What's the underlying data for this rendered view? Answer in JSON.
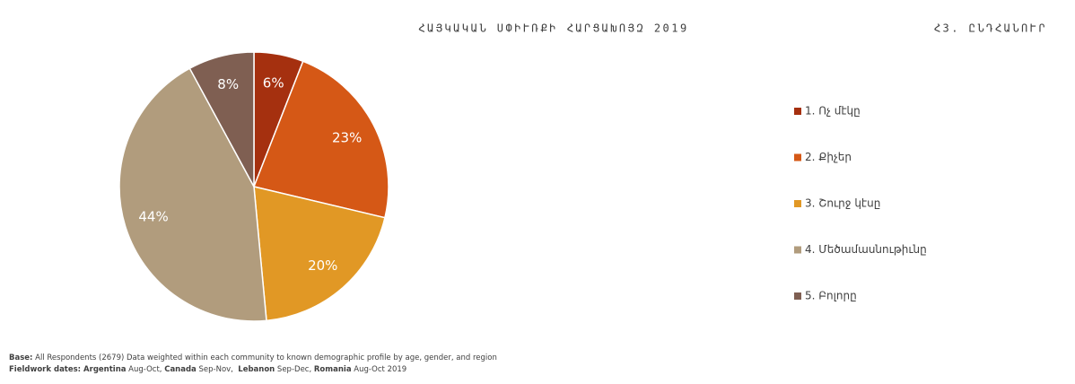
{
  "chart_data": {
    "type": "pie",
    "title": "ՀԱՅԿԱԿԱՆ ՍՓԻՒՌՔԻ ՀԱՐՑԱԽՈՅԶ 2019",
    "subtitle": "Հ3. ԸՆԴՀԱՆՈՒՐ",
    "categories": [
      "1. Ոչ մէկը",
      "2. Քիչեր",
      "3. Շուրջ կէսը",
      "4. Մեծամասնութիւնը",
      "5. Բոլորը"
    ],
    "values": [
      6,
      23,
      20,
      44,
      8
    ],
    "value_labels": [
      "6%",
      "23%",
      "20%",
      "44%",
      "8%"
    ],
    "colors": [
      "#a5300f",
      "#d55816",
      "#e19825",
      "#b19c7d",
      "#7f5f52"
    ],
    "legend": "right",
    "footnotes": [
      [
        {
          "text": "Base:",
          "bold": true
        },
        {
          "text": " All Respondents (2679) Data weighted within each community to known demographic profile by age, gender, and region"
        }
      ],
      [
        {
          "text": "Fieldwork dates: Argentina",
          "bold": true
        },
        {
          "text": " Aug-Oct, "
        },
        {
          "text": "Canada",
          "bold": true
        },
        {
          "text": " Sep-Nov,  "
        },
        {
          "text": "Lebanon",
          "bold": true
        },
        {
          "text": " Sep-Dec, "
        },
        {
          "text": "Romania",
          "bold": true
        },
        {
          "text": " Aug-Oct 2019"
        }
      ]
    ]
  }
}
